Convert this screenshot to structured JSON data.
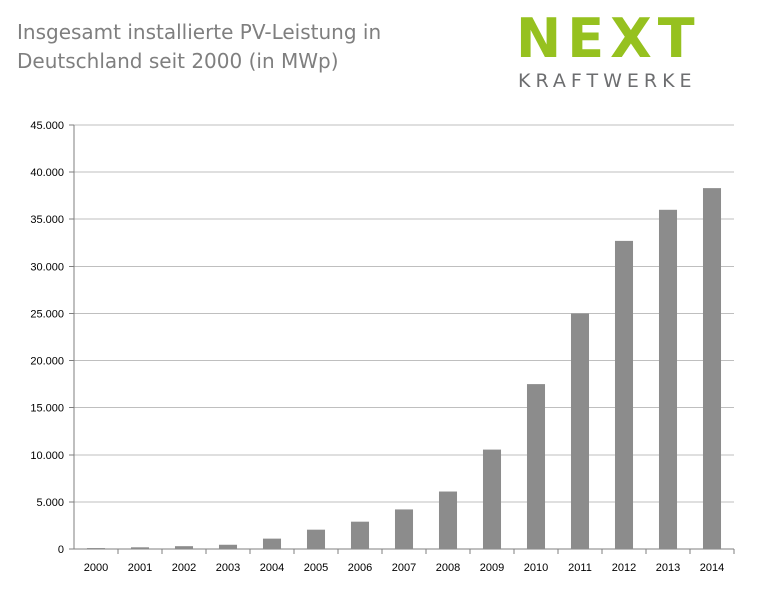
{
  "title": {
    "line1": "Insgesamt installierte PV-Leistung in",
    "line2": "Deutschland seit 2000 (in MWp)"
  },
  "logo": {
    "name": "NEXT",
    "sub": "KRAFTWERKE",
    "color_primary": "#96c11f",
    "color_secondary": "#6d6e70"
  },
  "colors": {
    "bar": "#8c8c8c",
    "grid": "#bfbfbf",
    "axis": "#7f7f7f",
    "text": "#000000"
  },
  "chart_data": {
    "type": "bar",
    "title": "Insgesamt installierte PV-Leistung in Deutschland seit 2000 (in MWp)",
    "categories": [
      "2000",
      "2001",
      "2002",
      "2003",
      "2004",
      "2005",
      "2006",
      "2007",
      "2008",
      "2009",
      "2010",
      "2011",
      "2012",
      "2013",
      "2014"
    ],
    "values": [
      100,
      180,
      300,
      450,
      1100,
      2050,
      2900,
      4200,
      6100,
      10550,
      17500,
      25000,
      32700,
      36000,
      38300
    ],
    "ylim": [
      0,
      45000
    ],
    "yticks": [
      0,
      5000,
      10000,
      15000,
      20000,
      25000,
      30000,
      35000,
      40000,
      45000
    ],
    "ytick_labels": [
      "0",
      "5.000",
      "10.000",
      "15.000",
      "20.000",
      "25.000",
      "30.000",
      "35.000",
      "40.000",
      "45.000"
    ],
    "xlabel": "",
    "ylabel": "",
    "grid": true
  }
}
